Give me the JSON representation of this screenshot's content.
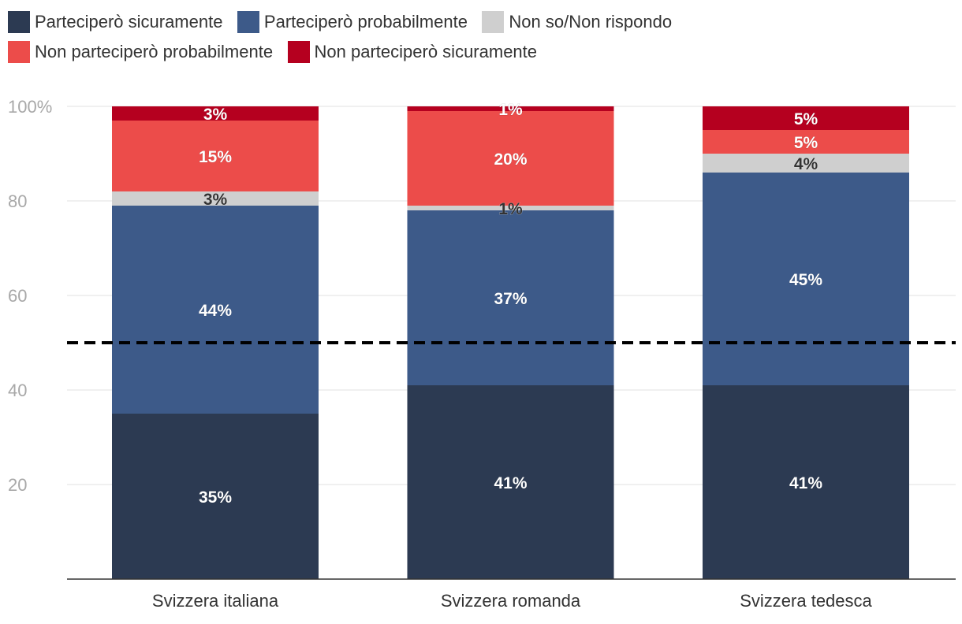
{
  "chart_data": {
    "type": "bar",
    "stacked": true,
    "title": "",
    "xlabel": "",
    "ylabel": "",
    "ylim": [
      0,
      100
    ],
    "y_ticks": [
      {
        "value": 20,
        "label": "20"
      },
      {
        "value": 40,
        "label": "40"
      },
      {
        "value": 60,
        "label": "60"
      },
      {
        "value": 80,
        "label": "80"
      },
      {
        "value": 100,
        "label": "100%"
      }
    ],
    "grid": true,
    "legend_position": "top",
    "reference_line": {
      "value": 50,
      "style": "dashed",
      "color": "#000000"
    },
    "categories": [
      "Svizzera italiana",
      "Svizzera romanda",
      "Svizzera tedesca"
    ],
    "series": [
      {
        "name": "Parteciperò sicuramente",
        "color": "#2c3a52",
        "label_color": "#ffffff",
        "values": [
          35,
          41,
          41
        ],
        "labels": [
          "35%",
          "41%",
          "41%"
        ]
      },
      {
        "name": "Parteciperò probabilmente",
        "color": "#3d5a89",
        "label_color": "#ffffff",
        "values": [
          44,
          37,
          45
        ],
        "labels": [
          "44%",
          "37%",
          "45%"
        ]
      },
      {
        "name": "Non so/Non rispondo",
        "color": "#cfcfcf",
        "label_color": "#333333",
        "values": [
          3,
          1,
          4
        ],
        "labels": [
          "3%",
          "1%",
          "4%"
        ]
      },
      {
        "name": "Non parteciperò probabilmente",
        "color": "#ec4c4a",
        "label_color": "#ffffff",
        "values": [
          15,
          20,
          5
        ],
        "labels": [
          "15%",
          "20%",
          "5%"
        ]
      },
      {
        "name": "Non parteciperò sicuramente",
        "color": "#b5001f",
        "label_color": "#ffffff",
        "values": [
          3,
          1,
          5
        ],
        "labels": [
          "3%",
          "1%",
          "5%"
        ]
      }
    ]
  }
}
